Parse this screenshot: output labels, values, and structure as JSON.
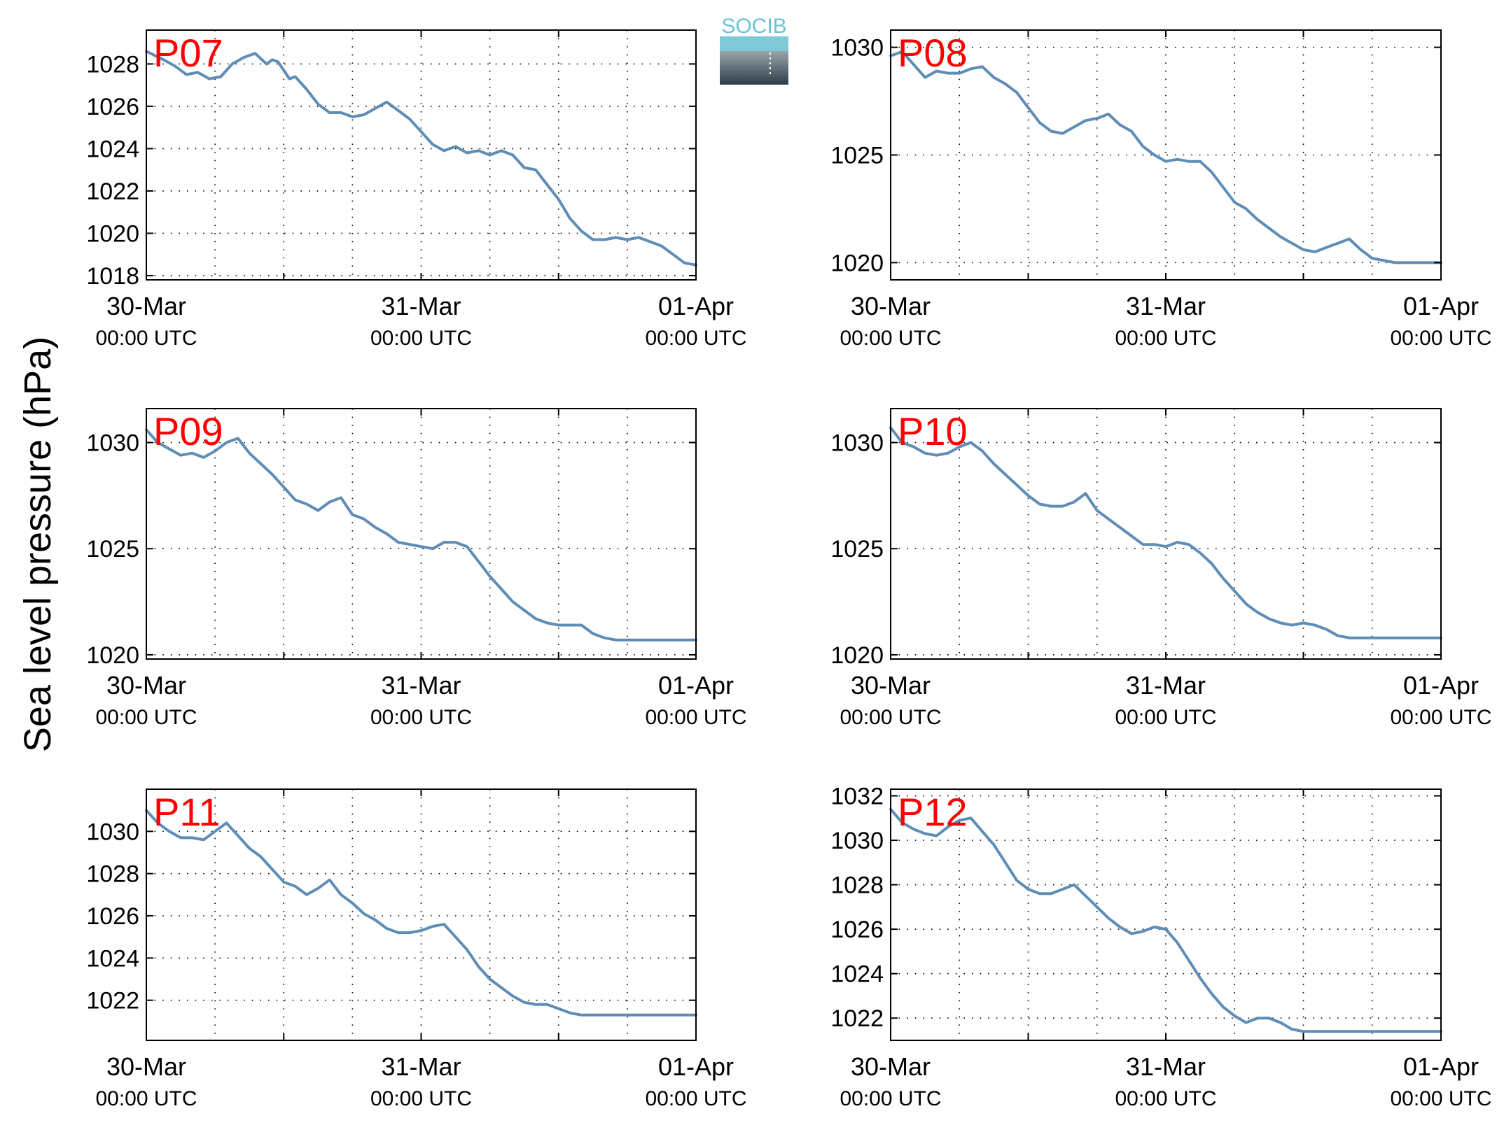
{
  "figure": {
    "ylabel": "Sea level pressure (hPa)",
    "logo_text": "SOCIB",
    "colors": {
      "line": "#5f8db5",
      "panel_label": "#ff0000",
      "axis": "#000000",
      "grid": "#000000"
    },
    "x_tick_labels": [
      {
        "date": "30-Mar",
        "time": "00:00 UTC"
      },
      {
        "date": "31-Mar",
        "time": "00:00 UTC"
      },
      {
        "date": "01-Apr",
        "time": "00:00 UTC"
      }
    ]
  },
  "chart_data": [
    {
      "type": "line",
      "panel_label": "P07",
      "x_unit": "hours since 30-Mar 00:00 UTC",
      "xlim": [
        0,
        48
      ],
      "ylim": [
        1017.8,
        1029.6
      ],
      "yticks": [
        1018,
        1020,
        1022,
        1024,
        1026,
        1028
      ],
      "grid": true,
      "x": [
        0,
        1.5,
        2.5,
        3.5,
        4.5,
        5.5,
        6.5,
        7.5,
        8.5,
        9.5,
        10.5,
        11,
        11.5,
        12,
        12.5,
        13,
        14,
        15,
        16,
        17,
        18,
        19,
        20,
        21,
        22,
        23,
        24,
        25,
        26,
        27,
        28,
        29,
        30,
        31,
        32,
        33,
        34,
        35,
        36,
        37,
        38,
        39,
        40,
        41,
        42,
        43,
        44,
        45,
        46,
        47,
        48
      ],
      "y": [
        1028.6,
        1028.2,
        1027.9,
        1027.5,
        1027.6,
        1027.3,
        1027.4,
        1028.0,
        1028.3,
        1028.5,
        1028.0,
        1028.2,
        1028.1,
        1027.7,
        1027.3,
        1027.4,
        1026.8,
        1026.1,
        1025.7,
        1025.7,
        1025.5,
        1025.6,
        1025.9,
        1026.2,
        1025.8,
        1025.4,
        1024.8,
        1024.2,
        1023.9,
        1024.1,
        1023.8,
        1023.9,
        1023.7,
        1023.9,
        1023.7,
        1023.1,
        1023.0,
        1022.3,
        1021.6,
        1020.7,
        1020.1,
        1019.7,
        1019.7,
        1019.8,
        1019.7,
        1019.8,
        1019.6,
        1019.4,
        1019.0,
        1018.6,
        1018.5
      ]
    },
    {
      "type": "line",
      "panel_label": "P08",
      "x_unit": "hours since 30-Mar 00:00 UTC",
      "xlim": [
        0,
        48
      ],
      "ylim": [
        1019.2,
        1030.8
      ],
      "yticks": [
        1020,
        1025,
        1030
      ],
      "grid": true,
      "x": [
        0,
        1,
        2,
        3,
        4,
        5,
        6,
        7,
        8,
        9,
        10,
        11,
        12,
        13,
        14,
        15,
        16,
        17,
        18,
        19,
        20,
        21,
        22,
        23,
        24,
        25,
        26,
        27,
        28,
        29,
        30,
        31,
        32,
        33,
        34,
        35,
        36,
        37,
        38,
        39,
        40,
        41,
        42,
        43,
        44,
        45,
        46,
        47,
        48
      ],
      "y": [
        1029.6,
        1029.8,
        1029.2,
        1028.6,
        1028.9,
        1028.8,
        1028.8,
        1029.0,
        1029.1,
        1028.6,
        1028.3,
        1027.9,
        1027.2,
        1026.5,
        1026.1,
        1026.0,
        1026.3,
        1026.6,
        1026.7,
        1026.9,
        1026.4,
        1026.1,
        1025.4,
        1025.0,
        1024.7,
        1024.8,
        1024.7,
        1024.7,
        1024.2,
        1023.5,
        1022.8,
        1022.5,
        1022.0,
        1021.6,
        1021.2,
        1020.9,
        1020.6,
        1020.5,
        1020.7,
        1020.9,
        1021.1,
        1020.6,
        1020.2,
        1020.1,
        1020.0,
        1020.0,
        1020.0,
        1020.0,
        1020.0
      ]
    },
    {
      "type": "line",
      "panel_label": "P09",
      "x_unit": "hours since 30-Mar 00:00 UTC",
      "xlim": [
        0,
        48
      ],
      "ylim": [
        1019.8,
        1031.6
      ],
      "yticks": [
        1020,
        1025,
        1030
      ],
      "grid": true,
      "x": [
        0,
        1,
        2,
        3,
        4,
        5,
        6,
        7,
        8,
        9,
        10,
        11,
        12,
        13,
        14,
        15,
        16,
        17,
        18,
        19,
        20,
        21,
        22,
        23,
        24,
        25,
        26,
        27,
        28,
        29,
        30,
        31,
        32,
        33,
        34,
        35,
        36,
        37,
        38,
        39,
        40,
        41,
        42,
        43,
        44,
        45,
        46,
        47,
        48
      ],
      "y": [
        1030.6,
        1030.0,
        1029.7,
        1029.4,
        1029.5,
        1029.3,
        1029.6,
        1030.0,
        1030.2,
        1029.5,
        1029.0,
        1028.5,
        1027.9,
        1027.3,
        1027.1,
        1026.8,
        1027.2,
        1027.4,
        1026.6,
        1026.4,
        1026.0,
        1025.7,
        1025.3,
        1025.2,
        1025.1,
        1025.0,
        1025.3,
        1025.3,
        1025.1,
        1024.4,
        1023.7,
        1023.1,
        1022.5,
        1022.1,
        1021.7,
        1021.5,
        1021.4,
        1021.4,
        1021.4,
        1021.0,
        1020.8,
        1020.7,
        1020.7,
        1020.7,
        1020.7,
        1020.7,
        1020.7,
        1020.7,
        1020.7
      ]
    },
    {
      "type": "line",
      "panel_label": "P10",
      "x_unit": "hours since 30-Mar 00:00 UTC",
      "xlim": [
        0,
        48
      ],
      "ylim": [
        1019.8,
        1031.6
      ],
      "yticks": [
        1020,
        1025,
        1030
      ],
      "grid": true,
      "x": [
        0,
        1,
        2,
        3,
        4,
        5,
        6,
        7,
        8,
        9,
        10,
        11,
        12,
        13,
        14,
        15,
        16,
        17,
        18,
        19,
        20,
        21,
        22,
        23,
        24,
        25,
        26,
        27,
        28,
        29,
        30,
        31,
        32,
        33,
        34,
        35,
        36,
        37,
        38,
        39,
        40,
        41,
        42,
        43,
        44,
        45,
        46,
        47,
        48
      ],
      "y": [
        1030.7,
        1030.0,
        1029.8,
        1029.5,
        1029.4,
        1029.5,
        1029.8,
        1030.0,
        1029.6,
        1029.0,
        1028.5,
        1028.0,
        1027.5,
        1027.1,
        1027.0,
        1027.0,
        1027.2,
        1027.6,
        1026.8,
        1026.4,
        1026.0,
        1025.6,
        1025.2,
        1025.2,
        1025.1,
        1025.3,
        1025.2,
        1024.8,
        1024.3,
        1023.6,
        1023.0,
        1022.4,
        1022.0,
        1021.7,
        1021.5,
        1021.4,
        1021.5,
        1021.4,
        1021.2,
        1020.9,
        1020.8,
        1020.8,
        1020.8,
        1020.8,
        1020.8,
        1020.8,
        1020.8,
        1020.8,
        1020.8
      ]
    },
    {
      "type": "line",
      "panel_label": "P11",
      "x_unit": "hours since 30-Mar 00:00 UTC",
      "xlim": [
        0,
        48
      ],
      "ylim": [
        1020.1,
        1032.0
      ],
      "yticks": [
        1022,
        1024,
        1026,
        1028,
        1030
      ],
      "grid": true,
      "x": [
        0,
        1,
        2,
        3,
        4,
        5,
        6,
        7,
        8,
        9,
        10,
        11,
        12,
        13,
        14,
        15,
        16,
        17,
        18,
        19,
        20,
        21,
        22,
        23,
        24,
        25,
        26,
        27,
        28,
        29,
        30,
        31,
        32,
        33,
        34,
        35,
        36,
        37,
        38,
        39,
        40,
        41,
        42,
        43,
        44,
        45,
        46,
        47,
        48
      ],
      "y": [
        1031.0,
        1030.4,
        1030.0,
        1029.7,
        1029.7,
        1029.6,
        1030.0,
        1030.4,
        1029.8,
        1029.2,
        1028.8,
        1028.2,
        1027.6,
        1027.4,
        1027.0,
        1027.3,
        1027.7,
        1027.0,
        1026.6,
        1026.1,
        1025.8,
        1025.4,
        1025.2,
        1025.2,
        1025.3,
        1025.5,
        1025.6,
        1025.0,
        1024.4,
        1023.6,
        1023.0,
        1022.6,
        1022.2,
        1021.9,
        1021.8,
        1021.8,
        1021.6,
        1021.4,
        1021.3,
        1021.3,
        1021.3,
        1021.3,
        1021.3,
        1021.3,
        1021.3,
        1021.3,
        1021.3,
        1021.3,
        1021.3
      ]
    },
    {
      "type": "line",
      "panel_label": "P12",
      "x_unit": "hours since 30-Mar 00:00 UTC",
      "xlim": [
        0,
        48
      ],
      "ylim": [
        1021.0,
        1032.3
      ],
      "yticks": [
        1022,
        1024,
        1026,
        1028,
        1030,
        1032
      ],
      "grid": true,
      "x": [
        0,
        1,
        2,
        3,
        4,
        5,
        6,
        7,
        8,
        9,
        10,
        11,
        12,
        13,
        14,
        15,
        16,
        17,
        18,
        19,
        20,
        21,
        22,
        23,
        24,
        25,
        26,
        27,
        28,
        29,
        30,
        31,
        32,
        33,
        34,
        35,
        36,
        37,
        38,
        39,
        40,
        41,
        42,
        43,
        44,
        45,
        46,
        47,
        48
      ],
      "y": [
        1031.4,
        1030.8,
        1030.5,
        1030.3,
        1030.2,
        1030.6,
        1030.9,
        1031.0,
        1030.4,
        1029.8,
        1029.0,
        1028.2,
        1027.8,
        1027.6,
        1027.6,
        1027.8,
        1028.0,
        1027.5,
        1027.0,
        1026.5,
        1026.1,
        1025.8,
        1025.9,
        1026.1,
        1026.0,
        1025.4,
        1024.6,
        1023.8,
        1023.1,
        1022.5,
        1022.1,
        1021.8,
        1022.0,
        1022.0,
        1021.8,
        1021.5,
        1021.4,
        1021.4,
        1021.4,
        1021.4,
        1021.4,
        1021.4,
        1021.4,
        1021.4,
        1021.4,
        1021.4,
        1021.4,
        1021.4,
        1021.4
      ]
    }
  ]
}
